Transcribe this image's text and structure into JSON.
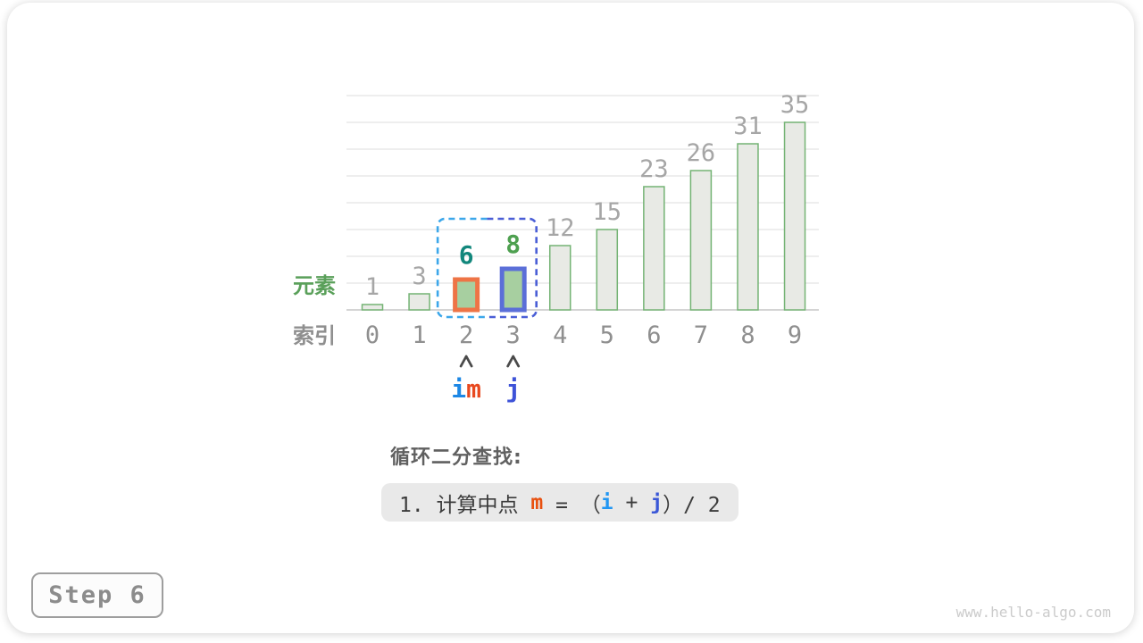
{
  "chart_data": {
    "type": "bar",
    "title": "",
    "categories": [
      "0",
      "1",
      "2",
      "3",
      "4",
      "5",
      "6",
      "7",
      "8",
      "9"
    ],
    "values": [
      1,
      3,
      6,
      8,
      12,
      15,
      23,
      26,
      31,
      35
    ],
    "ylim": [
      0,
      40
    ],
    "gridline_step": 5,
    "grid": "horizontal",
    "legend": "none",
    "axis_labels": {
      "y_label": "元素",
      "x_label": "索引"
    },
    "colors": {
      "normal_fill": "#e8eae5",
      "normal_stroke": "#74b374",
      "highlight_fill": "#a7cfa0",
      "value_label": "#a6a6a6",
      "index_label": "#8f8f8f",
      "y_label_color": "#5aa05a",
      "x_label_color": "#8f8f8f",
      "gridline": "#e3e3e3",
      "baseline": "#c6c6c6",
      "arrow": "#4a4a4a"
    },
    "highlighted_bars": [
      {
        "index": 2,
        "value": 6,
        "stroke": "#ee7446",
        "value_label_color": "#12877c"
      },
      {
        "index": 3,
        "value": 8,
        "stroke": "#5b6fd8",
        "value_label_color": "#4ea050"
      }
    ],
    "range_box": {
      "from_index": 2,
      "to_index": 3,
      "left_color": "#3ca7ea",
      "right_color": "#4a5ed6"
    },
    "pointers": [
      {
        "index": 2,
        "chars": [
          {
            "text": "i",
            "color": "#1c87e5"
          },
          {
            "text": "m",
            "color": "#e8491f"
          }
        ]
      },
      {
        "index": 3,
        "chars": [
          {
            "text": "j",
            "color": "#3d52d8"
          }
        ]
      }
    ]
  },
  "caption": {
    "heading": "循环二分查找:",
    "formula_segments": [
      {
        "text": "1. 计算中点 ",
        "color": "#3c3c3c",
        "bold": false
      },
      {
        "text": "m",
        "color": "#e8500f",
        "bold": true
      },
      {
        "text": " = （",
        "color": "#3c3c3c",
        "bold": false
      },
      {
        "text": "i",
        "color": "#2196f3",
        "bold": true
      },
      {
        "text": " + ",
        "color": "#3c3c3c",
        "bold": false
      },
      {
        "text": "j",
        "color": "#3a57d7",
        "bold": true
      },
      {
        "text": "）/ 2",
        "color": "#3c3c3c",
        "bold": false
      }
    ]
  },
  "step_badge": {
    "label": "Step 6"
  },
  "watermark": {
    "text": "www.hello-algo.com"
  }
}
